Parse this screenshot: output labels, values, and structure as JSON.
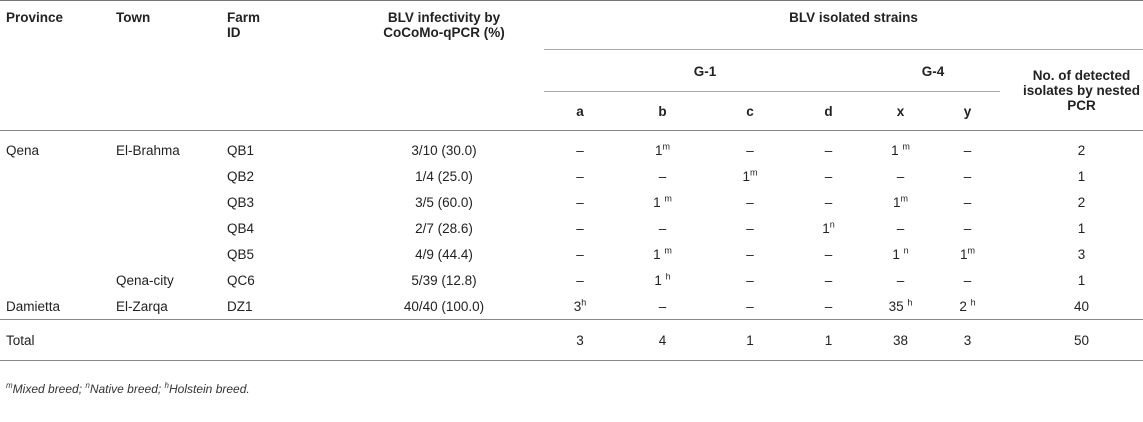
{
  "headers": {
    "province": "Province",
    "town": "Town",
    "farm_id": "Farm ID",
    "infectivity": "BLV infectivity by CoCoMo-qPCR (%)",
    "strains": "BLV isolated strains",
    "g1": "G-1",
    "g4": "G-4",
    "detected": "No. of detected isolates by nested PCR",
    "a": "a",
    "b": "b",
    "c": "c",
    "d": "d",
    "x": "x",
    "y": "y"
  },
  "rows": [
    {
      "province": "Qena",
      "town": "El-Brahma",
      "farm": "QB1",
      "inf": "3/10 (30.0)",
      "a": "–",
      "b": "1",
      "b_sup": "m",
      "c": "–",
      "c_sup": "",
      "d": "–",
      "d_sup": "",
      "x": "1 ",
      "x_sup": "m",
      "y": "–",
      "y_sup": "",
      "a_sup": "",
      "total": "2"
    },
    {
      "province": "",
      "town": "",
      "farm": "QB2",
      "inf": "1/4 (25.0)",
      "a": "–",
      "a_sup": "",
      "b": "–",
      "b_sup": "",
      "c": "1",
      "c_sup": "m",
      "d": "–",
      "d_sup": "",
      "x": "–",
      "x_sup": "",
      "y": "–",
      "y_sup": "",
      "total": "1"
    },
    {
      "province": "",
      "town": "",
      "farm": "QB3",
      "inf": "3/5 (60.0)",
      "a": "–",
      "a_sup": "",
      "b": "1 ",
      "b_sup": "m",
      "c": "–",
      "c_sup": "",
      "d": "–",
      "d_sup": "",
      "x": "1",
      "x_sup": "m",
      "y": "–",
      "y_sup": "",
      "total": "2"
    },
    {
      "province": "",
      "town": "",
      "farm": "QB4",
      "inf": "2/7 (28.6)",
      "a": "–",
      "a_sup": "",
      "b": "–",
      "b_sup": "",
      "c": "–",
      "c_sup": "",
      "d": "1",
      "d_sup": "n",
      "x": "–",
      "x_sup": "",
      "y": "–",
      "y_sup": "",
      "total": "1"
    },
    {
      "province": "",
      "town": "",
      "farm": "QB5",
      "inf": "4/9 (44.4)",
      "a": "–",
      "a_sup": "",
      "b": "1 ",
      "b_sup": "m",
      "c": "–",
      "c_sup": "",
      "d": "–",
      "d_sup": "",
      "x": "1 ",
      "x_sup": "n",
      "y": "1",
      "y_sup": "m",
      "total": "3"
    },
    {
      "province": "",
      "town": "Qena-city",
      "farm": "QC6",
      "inf": "5/39 (12.8)",
      "a": "–",
      "a_sup": "",
      "b": "1 ",
      "b_sup": "h",
      "c": "–",
      "c_sup": "",
      "d": "–",
      "d_sup": "",
      "x": "–",
      "x_sup": "",
      "y": "–",
      "y_sup": "",
      "total": "1"
    },
    {
      "province": "Damietta",
      "town": "El-Zarqa",
      "farm": "DZ1",
      "inf": "40/40 (100.0)",
      "a": "3",
      "a_sup": "h",
      "b": "–",
      "b_sup": "",
      "c": "–",
      "c_sup": "",
      "d": "–",
      "d_sup": "",
      "x": "35 ",
      "x_sup": "h",
      "y": "2 ",
      "y_sup": "h",
      "total": "40"
    }
  ],
  "total_row": {
    "label": "Total",
    "a": "3",
    "b": "4",
    "c": "1",
    "d": "1",
    "x": "38",
    "y": "3",
    "total": "50"
  },
  "footnote": {
    "m_sup": "m",
    "m_text": "Mixed breed; ",
    "n_sup": "n",
    "n_text": "Native breed; ",
    "h_sup": "h",
    "h_text": "Holstein breed."
  }
}
